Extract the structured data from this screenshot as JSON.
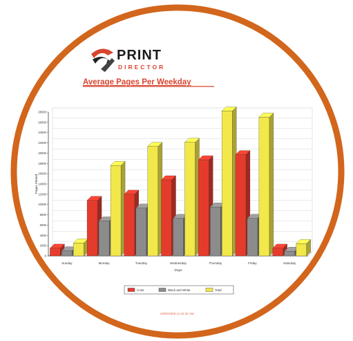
{
  "colors": {
    "ring": "#d2661c",
    "title": "#d8452f",
    "color_series": "#e53b2c",
    "bw_series": "#8c8c8c",
    "total_series": "#f2e84a",
    "footer": "#e26a4a"
  },
  "logo": {
    "icon": "print-director-swoosh-icon",
    "word1": "PRINT",
    "word2": "DIRECTOR"
  },
  "report_title": "Average Pages Per Weekday",
  "footer_text": "10/06/2009 11:22:32 AM",
  "chart_data": {
    "type": "bar",
    "title": "Average Pages Per Weekday",
    "xlabel": "Days",
    "ylabel": "Pages Printed",
    "ylim": [
      0,
      28000
    ],
    "yticks": [
      0,
      2000,
      4000,
      6000,
      8000,
      10000,
      12000,
      14000,
      16000,
      18000,
      20000,
      22000,
      24000,
      26000,
      28000
    ],
    "categories": [
      "Sunday",
      "Monday",
      "Tuesday",
      "Wednesday",
      "Thursday",
      "Friday",
      "Saturday"
    ],
    "series": [
      {
        "name": "Color",
        "values": [
          1500,
          10800,
          12000,
          14800,
          18700,
          19700,
          1500
        ]
      },
      {
        "name": "Black and White",
        "values": [
          1000,
          6800,
          9300,
          7300,
          9500,
          7300,
          900
        ]
      },
      {
        "name": "Total",
        "values": [
          2500,
          17600,
          21300,
          22100,
          28200,
          27000,
          2400
        ]
      }
    ],
    "legend_position": "bottom",
    "grid": true
  }
}
